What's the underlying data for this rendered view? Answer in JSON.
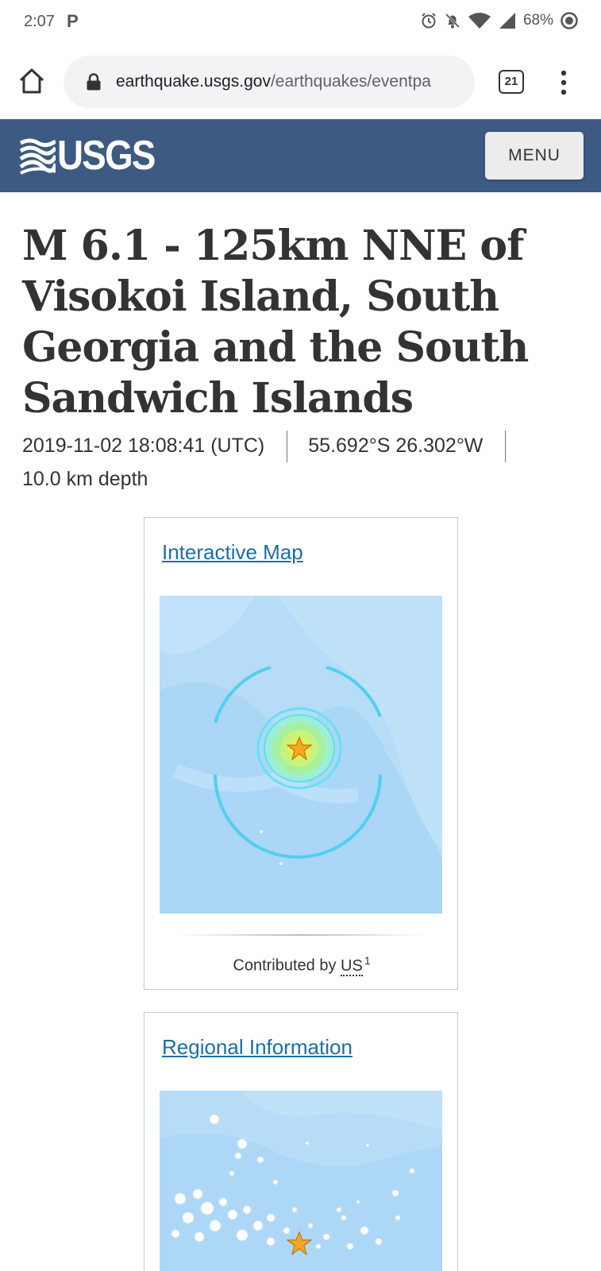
{
  "status_bar": {
    "time": "2:07",
    "app_letter": "P",
    "battery": "68%"
  },
  "browser": {
    "url_domain": "earthquake.usgs.gov",
    "url_path": "/earthquakes/eventpa",
    "tab_count": "21"
  },
  "header": {
    "logo_text": "USGS",
    "menu_label": "MENU",
    "background_color": "#3c5a82"
  },
  "event": {
    "title": "M 6.1 - 125km NNE of Visokoi Island, South Georgia and the South Sandwich Islands",
    "time": "2019-11-02 18:08:41 (UTC)",
    "location": "55.692°S 26.302°W",
    "depth": "10.0 km depth"
  },
  "map_card": {
    "link_label": "Interactive Map",
    "contributed_prefix": "Contributed by",
    "contributor_code": "US",
    "footnote": "1"
  },
  "region_card": {
    "link_label": "Regional Information"
  },
  "colors": {
    "link": "#1a6fa8",
    "map_water": "#b6dcf7",
    "epicenter_star": "#f5a623"
  }
}
